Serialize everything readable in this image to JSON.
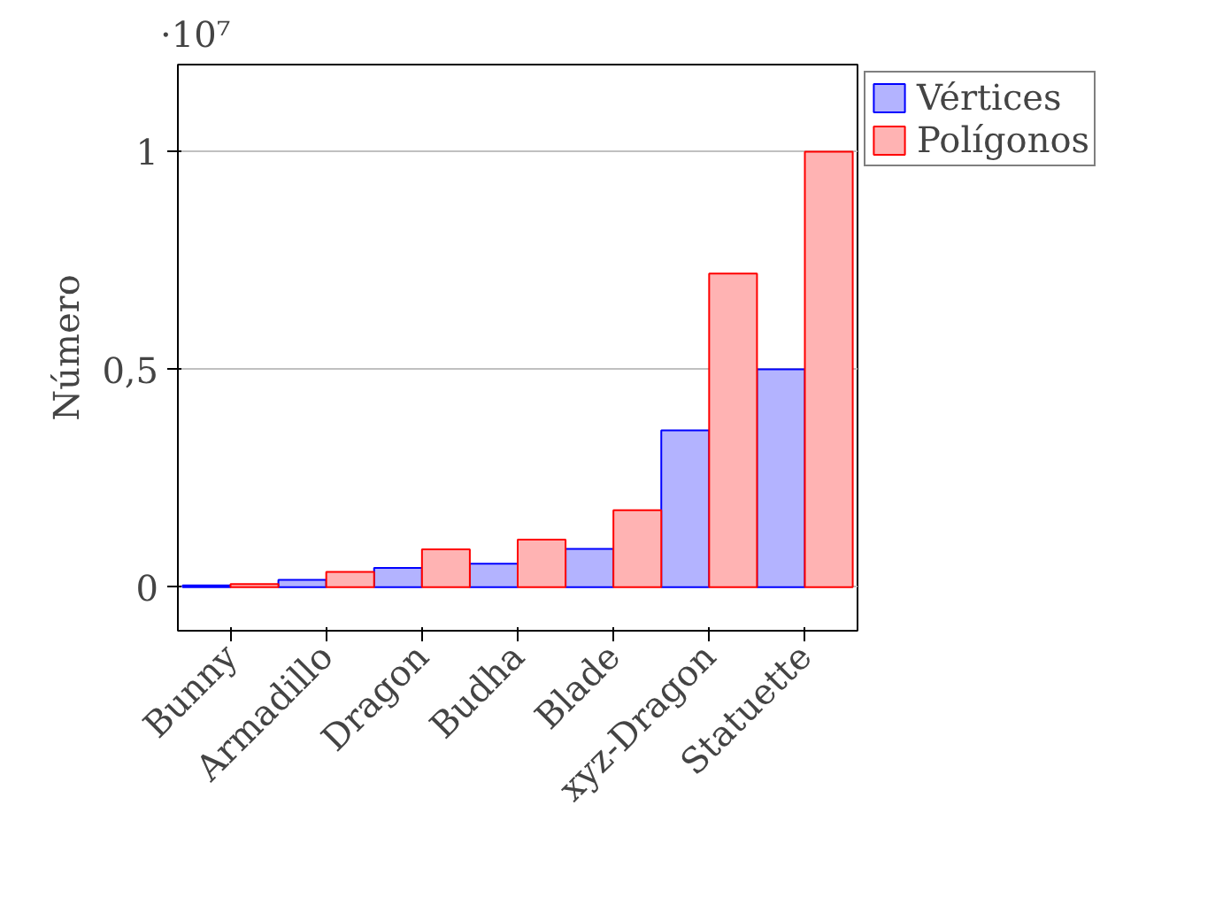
{
  "chart_data": {
    "type": "bar",
    "ylabel": "Número",
    "annotations": [
      "·10⁷"
    ],
    "categories": [
      "Bunny",
      "Armadillo",
      "Dragon",
      "Budha",
      "Blade",
      "xyz-Dragon",
      "Statuette"
    ],
    "series": [
      {
        "name": "Vértices",
        "color": "#b3b3ff",
        "values": [
          0.004,
          0.017,
          0.044,
          0.054,
          0.088,
          0.36,
          0.5
        ]
      },
      {
        "name": "Polígonos",
        "color": "#ffb3b3",
        "values": [
          0.007,
          0.035,
          0.087,
          0.109,
          0.177,
          0.72,
          1
        ]
      }
    ],
    "ylim": [
      -0.1,
      1.2
    ],
    "yticks": [
      0,
      {
        "value": 0.5,
        "label": "0,5"
      },
      1
    ],
    "grid": "y",
    "legend": "top right"
  }
}
